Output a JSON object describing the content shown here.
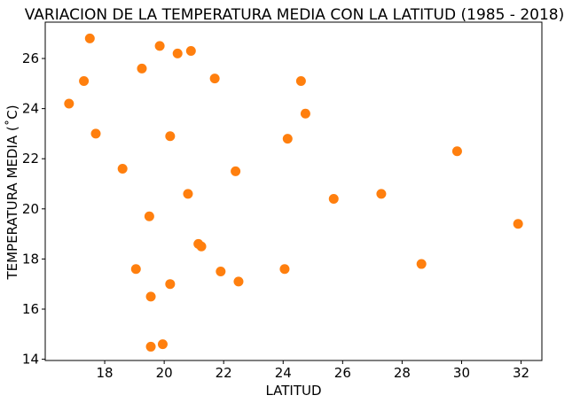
{
  "chart_data": {
    "type": "scatter",
    "title": "VARIACION DE LA TEMPERATURA MEDIA CON LA LATITUD (1985 - 2018)",
    "xlabel": "LATITUD",
    "ylabel": "TEMPERATURA MEDIA (˚C)",
    "xlim": [
      16.0,
      32.7
    ],
    "ylim": [
      13.95,
      27.45
    ],
    "xticks": [
      18,
      20,
      22,
      24,
      26,
      28,
      30,
      32
    ],
    "yticks": [
      14,
      16,
      18,
      20,
      22,
      24,
      26
    ],
    "color": "#ff7f0e",
    "grid": false,
    "points": [
      {
        "x": 16.8,
        "y": 24.2
      },
      {
        "x": 17.3,
        "y": 25.1
      },
      {
        "x": 17.5,
        "y": 26.8
      },
      {
        "x": 17.7,
        "y": 23.0
      },
      {
        "x": 18.6,
        "y": 21.6
      },
      {
        "x": 19.05,
        "y": 17.6
      },
      {
        "x": 19.25,
        "y": 25.6
      },
      {
        "x": 19.5,
        "y": 19.7
      },
      {
        "x": 19.55,
        "y": 16.5
      },
      {
        "x": 19.55,
        "y": 14.5
      },
      {
        "x": 19.85,
        "y": 26.5
      },
      {
        "x": 19.95,
        "y": 14.6
      },
      {
        "x": 20.2,
        "y": 22.9
      },
      {
        "x": 20.2,
        "y": 17.0
      },
      {
        "x": 20.45,
        "y": 26.2
      },
      {
        "x": 20.8,
        "y": 20.6
      },
      {
        "x": 20.9,
        "y": 26.3
      },
      {
        "x": 21.15,
        "y": 18.6
      },
      {
        "x": 21.25,
        "y": 18.5
      },
      {
        "x": 21.7,
        "y": 25.2
      },
      {
        "x": 21.9,
        "y": 17.5
      },
      {
        "x": 22.4,
        "y": 21.5
      },
      {
        "x": 22.5,
        "y": 17.1
      },
      {
        "x": 24.05,
        "y": 17.6
      },
      {
        "x": 24.15,
        "y": 22.8
      },
      {
        "x": 24.6,
        "y": 25.1
      },
      {
        "x": 24.75,
        "y": 23.8
      },
      {
        "x": 25.7,
        "y": 20.4
      },
      {
        "x": 27.3,
        "y": 20.6
      },
      {
        "x": 28.65,
        "y": 17.8
      },
      {
        "x": 29.85,
        "y": 22.3
      },
      {
        "x": 31.9,
        "y": 19.4
      }
    ]
  }
}
